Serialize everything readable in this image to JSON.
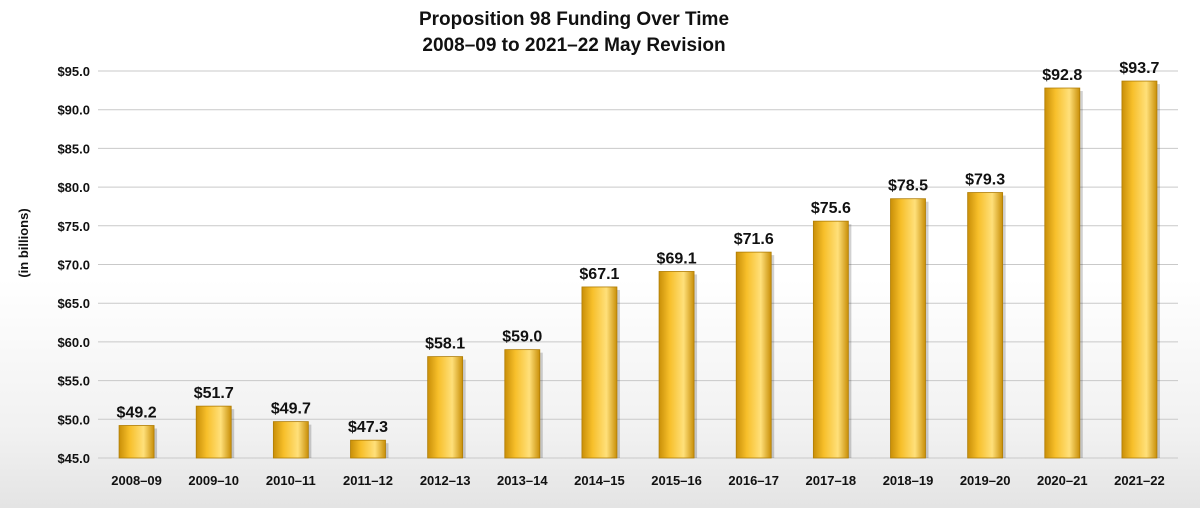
{
  "chart_data": {
    "type": "bar",
    "title": "Proposition 98 Funding Over Time",
    "subtitle": "2008–09 to 2021–22 May Revision",
    "xlabel": "",
    "ylabel": "(in billions)",
    "ylim": [
      45,
      95
    ],
    "y_ticks": [
      "$45.0",
      "$50.0",
      "$55.0",
      "$60.0",
      "$65.0",
      "$70.0",
      "$75.0",
      "$80.0",
      "$85.0",
      "$90.0",
      "$95.0"
    ],
    "categories": [
      "2008–09",
      "2009–10",
      "2010–11",
      "2011–12",
      "2012–13",
      "2013–14",
      "2014–15",
      "2015–16",
      "2016–17",
      "2017–18",
      "2018–19",
      "2019–20",
      "2020–21",
      "2021–22"
    ],
    "values": [
      49.2,
      51.7,
      49.7,
      47.3,
      58.1,
      59.0,
      67.1,
      69.1,
      71.6,
      75.6,
      78.5,
      79.3,
      92.8,
      93.7
    ],
    "data_labels": [
      "$49.2",
      "$51.7",
      "$49.7",
      "$47.3",
      "$58.1",
      "$59.0",
      "$67.1",
      "$69.1",
      "$71.6",
      "$75.6",
      "$78.5",
      "$79.3",
      "$92.8",
      "$93.7"
    ],
    "grid": true,
    "legend": "none",
    "colors": {
      "bar": "#f7bf2a",
      "bar_dark": "#c98f08",
      "bar_light": "#ffe07a"
    }
  }
}
